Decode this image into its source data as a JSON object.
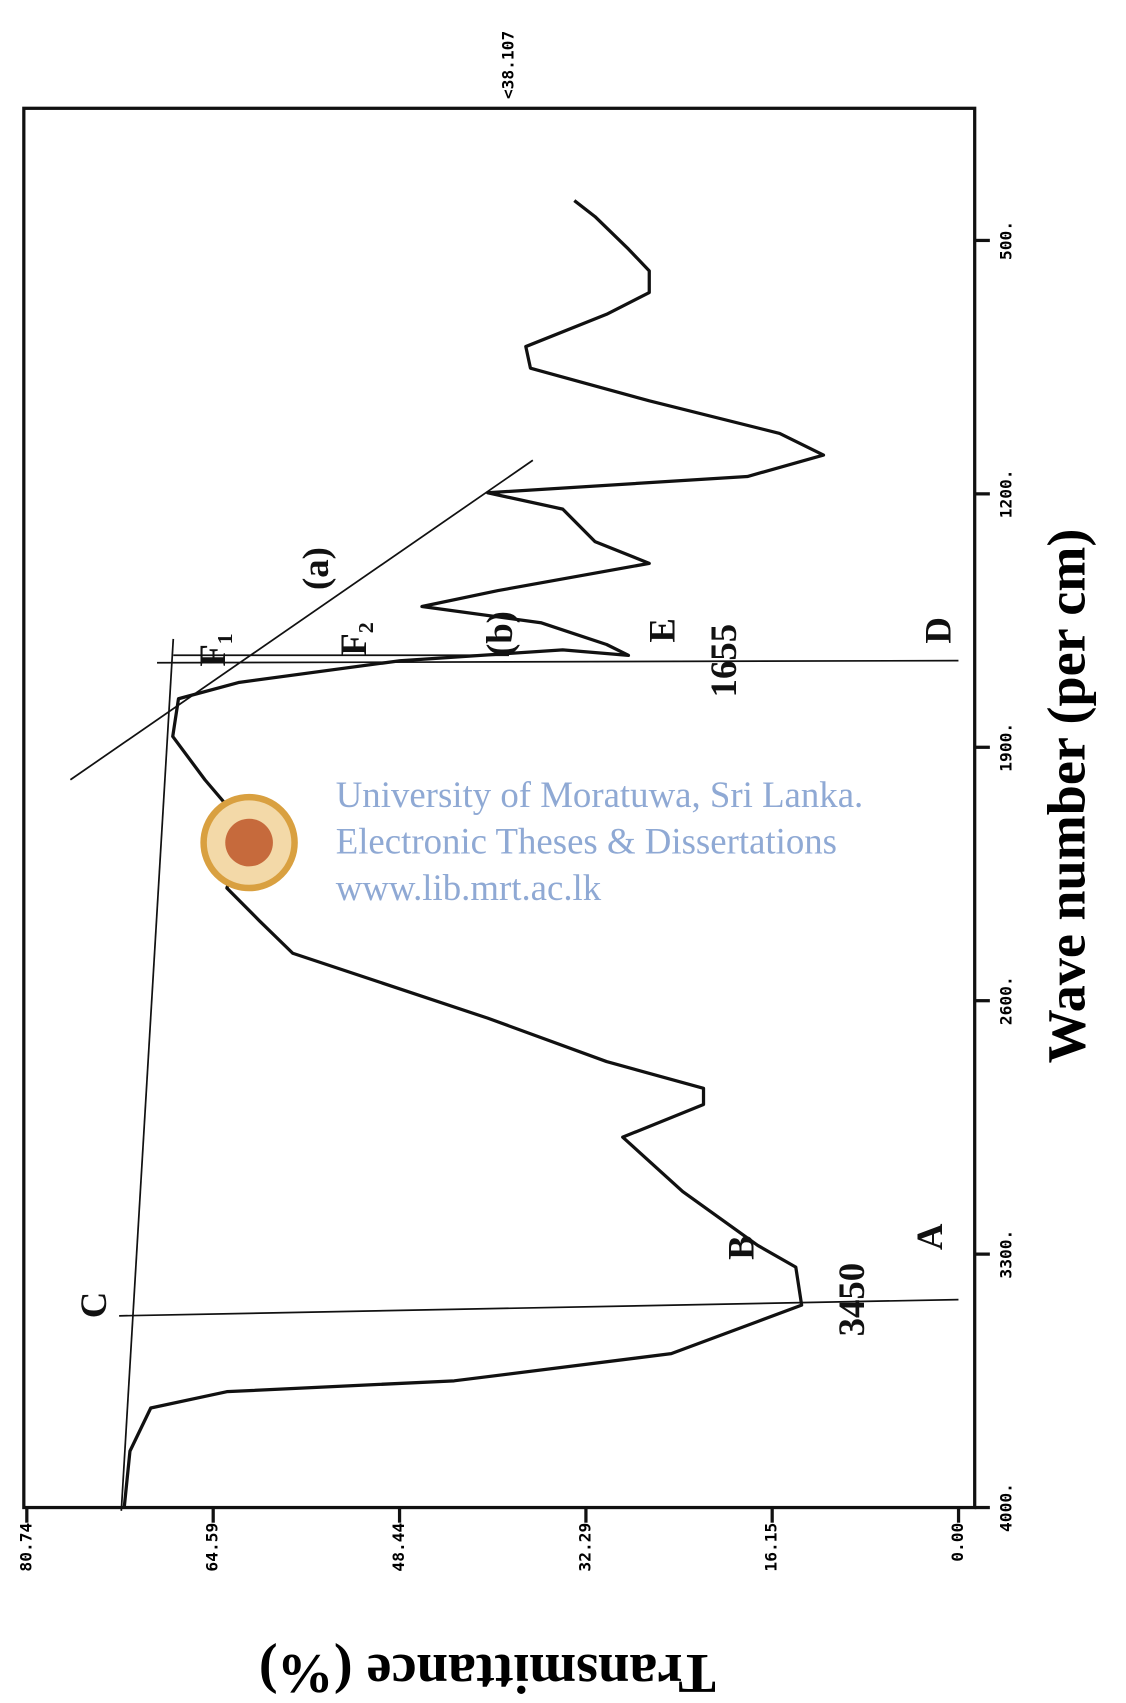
{
  "chart_data": {
    "type": "line",
    "title": "<38.107",
    "x_label": "Wave number (per cm)",
    "y_label": "Transmittance (%)",
    "xlim": [
      4000,
      135
    ],
    "ylim": [
      -1.4,
      81.0
    ],
    "xticks": [
      {
        "value": 4000,
        "label": "4000."
      },
      {
        "value": 3300,
        "label": "3300."
      },
      {
        "value": 2600,
        "label": "2600."
      },
      {
        "value": 1900,
        "label": "1900."
      },
      {
        "value": 1200,
        "label": "1200."
      },
      {
        "value": 500,
        "label": "500."
      }
    ],
    "yticks": [
      {
        "value": 0,
        "label": "0.00"
      },
      16.15,
      32.29,
      48.44,
      64.59,
      80.74
    ],
    "x": [
      4000,
      3844,
      3725,
      3680,
      3650,
      3575,
      3486,
      3441,
      3336,
      3276,
      3127,
      2977,
      2887,
      2842,
      2768,
      2648,
      2469,
      2379,
      2289,
      2199,
      2080,
      1990,
      1870,
      1766,
      1721,
      1661,
      1631,
      1646,
      1616,
      1556,
      1511,
      1467,
      1392,
      1332,
      1242,
      1197,
      1152,
      1093,
      1033,
      943,
      853,
      793,
      704,
      644,
      584,
      524,
      434,
      390
    ],
    "series": [
      {
        "name": "Transmittance",
        "color": "#111111",
        "values": [
          72.3,
          71.8,
          70,
          63.4,
          43.7,
          24.9,
          17.4,
          13.6,
          14.1,
          17.4,
          23.9,
          29.1,
          22.1,
          22.1,
          30.5,
          40.8,
          57.7,
          60.6,
          63.4,
          62.4,
          62.9,
          65.3,
          68.1,
          67.6,
          62.4,
          48.4,
          34.3,
          28.6,
          30.5,
          36.2,
          46.5,
          39.9,
          26.8,
          31.5,
          34.3,
          40.8,
          18.3,
          11.7,
          15.5,
          26.8,
          37.1,
          37.5,
          30.5,
          26.8,
          26.8,
          28.6,
          31.5,
          33.3
        ]
      }
    ],
    "annotations": [
      "C",
      "B",
      "A",
      "3450",
      "E",
      "D",
      "1655",
      "F₁",
      "F₂",
      "(a)",
      "(b)"
    ],
    "watermark": [
      "University of Moratuwa, Sri Lanka.",
      "Electronic Theses & Dissertations",
      "www.lib.mrt.ac.lk"
    ]
  }
}
